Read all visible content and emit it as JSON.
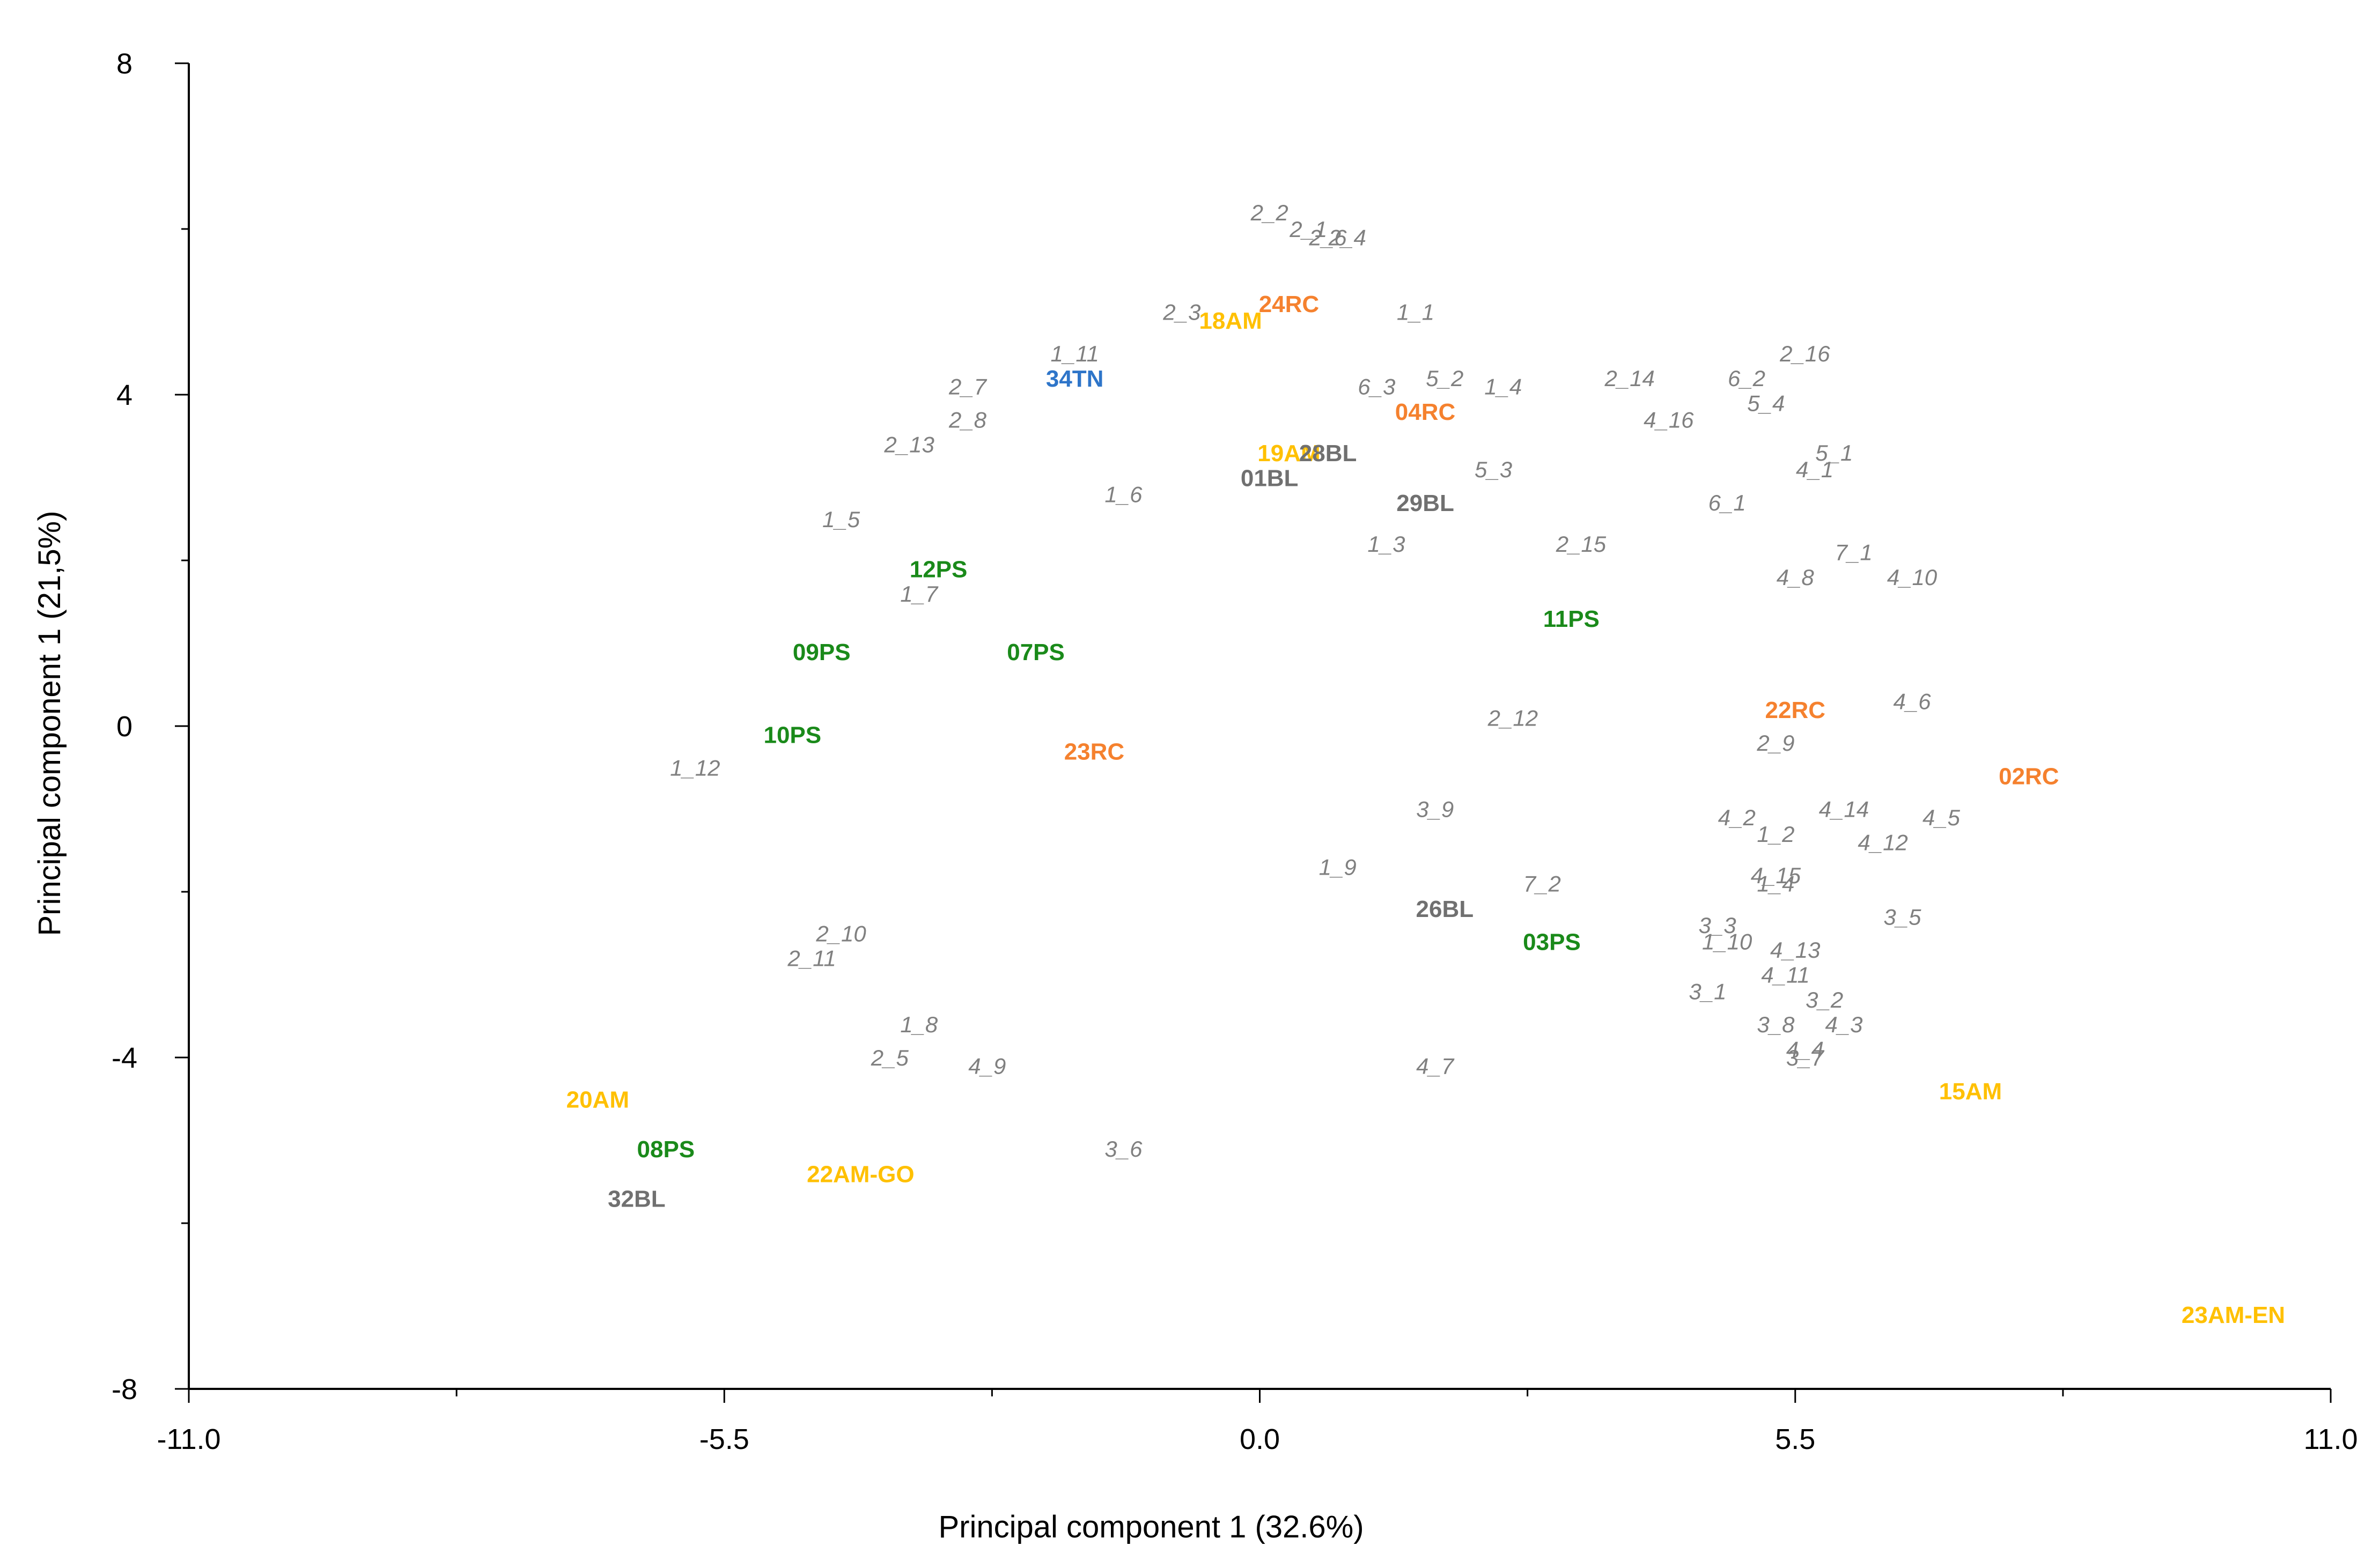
{
  "chart_data": {
    "type": "scatter",
    "title": "",
    "xlabel": "Principal component 1 (32.6%)",
    "ylabel": "Principal component 1 (21,5%)",
    "xlim": [
      -11.0,
      11.0
    ],
    "ylim": [
      -8,
      8
    ],
    "xticks": [
      -11.0,
      -5.5,
      0.0,
      5.5,
      11.0
    ],
    "xtick_labels": [
      "-11.0",
      "-5.5",
      "0.0",
      "5.5",
      "11.0"
    ],
    "yticks": [
      -8,
      -4,
      0,
      4,
      8
    ],
    "ytick_labels": [
      "-8",
      "-4",
      "0",
      "4",
      "8"
    ],
    "grid": false,
    "colors": {
      "variables": "#808080",
      "PS": "#1a8a1a",
      "RC": "#f5812e",
      "AM": "#ffc000",
      "BL": "#707070",
      "TN": "#2e75c9"
    },
    "variables": [
      {
        "label": "2_2",
        "x": 0.1,
        "y": 6.2
      },
      {
        "label": "2_1",
        "x": 0.5,
        "y": 6.0
      },
      {
        "label": "2_6",
        "x": 0.7,
        "y": 5.9
      },
      {
        "label": "2_4",
        "x": 0.9,
        "y": 5.9
      },
      {
        "label": "2_3",
        "x": -0.8,
        "y": 5.0
      },
      {
        "label": "1_1",
        "x": 1.6,
        "y": 5.0
      },
      {
        "label": "1_11",
        "x": -1.9,
        "y": 4.5
      },
      {
        "label": "2_7",
        "x": -3.0,
        "y": 4.1
      },
      {
        "label": "6_3",
        "x": 1.2,
        "y": 4.1
      },
      {
        "label": "5_2",
        "x": 1.9,
        "y": 4.2
      },
      {
        "label": "1_4",
        "x": 2.5,
        "y": 4.1
      },
      {
        "label": "2_14",
        "x": 3.8,
        "y": 4.2
      },
      {
        "label": "6_2",
        "x": 5.0,
        "y": 4.2
      },
      {
        "label": "2_16",
        "x": 5.6,
        "y": 4.5
      },
      {
        "label": "5_4",
        "x": 5.2,
        "y": 3.9
      },
      {
        "label": "4_16",
        "x": 4.2,
        "y": 3.7
      },
      {
        "label": "2_8",
        "x": -3.0,
        "y": 3.7
      },
      {
        "label": "2_13",
        "x": -3.6,
        "y": 3.4
      },
      {
        "label": "5_1",
        "x": 5.9,
        "y": 3.3
      },
      {
        "label": "4_1",
        "x": 5.7,
        "y": 3.1
      },
      {
        "label": "5_3",
        "x": 2.4,
        "y": 3.1
      },
      {
        "label": "1_6",
        "x": -1.4,
        "y": 2.8
      },
      {
        "label": "6_1",
        "x": 4.8,
        "y": 2.7
      },
      {
        "label": "1_5",
        "x": -4.3,
        "y": 2.5
      },
      {
        "label": "1_3",
        "x": 1.3,
        "y": 2.2
      },
      {
        "label": "2_15",
        "x": 3.3,
        "y": 2.2
      },
      {
        "label": "7_1",
        "x": 6.1,
        "y": 2.1
      },
      {
        "label": "4_8",
        "x": 5.5,
        "y": 1.8
      },
      {
        "label": "4_10",
        "x": 6.7,
        "y": 1.8
      },
      {
        "label": "1_7",
        "x": -3.5,
        "y": 1.6
      },
      {
        "label": "4_6",
        "x": 6.7,
        "y": 0.3
      },
      {
        "label": "2_12",
        "x": 2.6,
        "y": 0.1
      },
      {
        "label": "2_9",
        "x": 5.3,
        "y": -0.2
      },
      {
        "label": "1_12",
        "x": -5.8,
        "y": -0.5
      },
      {
        "label": "3_9",
        "x": 1.8,
        "y": -1.0
      },
      {
        "label": "4_2",
        "x": 4.9,
        "y": -1.1
      },
      {
        "label": "4_14",
        "x": 6.0,
        "y": -1.0
      },
      {
        "label": "4_5",
        "x": 7.0,
        "y": -1.1
      },
      {
        "label": "1_2",
        "x": 5.3,
        "y": -1.3
      },
      {
        "label": "4_12",
        "x": 6.4,
        "y": -1.4
      },
      {
        "label": "1_9",
        "x": 0.8,
        "y": -1.7
      },
      {
        "label": "4_15",
        "x": 5.3,
        "y": -1.8
      },
      {
        "label": "1_4",
        "x": 5.3,
        "y": -1.9
      },
      {
        "label": "7_2",
        "x": 2.9,
        "y": -1.9
      },
      {
        "label": "3_5",
        "x": 6.6,
        "y": -2.3
      },
      {
        "label": "3_3",
        "x": 4.7,
        "y": -2.4
      },
      {
        "label": "1_10",
        "x": 4.8,
        "y": -2.6
      },
      {
        "label": "2_10",
        "x": -4.3,
        "y": -2.5
      },
      {
        "label": "4_13",
        "x": 5.5,
        "y": -2.7
      },
      {
        "label": "2_11",
        "x": -4.6,
        "y": -2.8
      },
      {
        "label": "4_11",
        "x": 5.4,
        "y": -3.0
      },
      {
        "label": "3_1",
        "x": 4.6,
        "y": -3.2
      },
      {
        "label": "3_2",
        "x": 5.8,
        "y": -3.3
      },
      {
        "label": "3_8",
        "x": 5.3,
        "y": -3.6
      },
      {
        "label": "4_3",
        "x": 6.0,
        "y": -3.6
      },
      {
        "label": "1_8",
        "x": -3.5,
        "y": -3.6
      },
      {
        "label": "4_4",
        "x": 5.6,
        "y": -3.9
      },
      {
        "label": "3_7",
        "x": 5.6,
        "y": -4.0
      },
      {
        "label": "2_5",
        "x": -3.8,
        "y": -4.0
      },
      {
        "label": "4_9",
        "x": -2.8,
        "y": -4.1
      },
      {
        "label": "4_7",
        "x": 1.8,
        "y": -4.1
      },
      {
        "label": "3_6",
        "x": -1.4,
        "y": -5.1
      }
    ],
    "points": [
      {
        "label": "24RC",
        "group": "RC",
        "x": 0.3,
        "y": 5.1
      },
      {
        "label": "18AM",
        "group": "AM",
        "x": -0.3,
        "y": 4.9
      },
      {
        "label": "34TN",
        "group": "TN",
        "x": -1.9,
        "y": 4.2
      },
      {
        "label": "04RC",
        "group": "RC",
        "x": 1.7,
        "y": 3.8
      },
      {
        "label": "19AM",
        "group": "AM",
        "x": 0.3,
        "y": 3.3
      },
      {
        "label": "28BL",
        "group": "BL",
        "x": 0.7,
        "y": 3.3
      },
      {
        "label": "01BL",
        "group": "BL",
        "x": 0.1,
        "y": 3.0
      },
      {
        "label": "29BL",
        "group": "BL",
        "x": 1.7,
        "y": 2.7
      },
      {
        "label": "12PS",
        "group": "PS",
        "x": -3.3,
        "y": 1.9
      },
      {
        "label": "11PS",
        "group": "PS",
        "x": 3.2,
        "y": 1.3
      },
      {
        "label": "09PS",
        "group": "PS",
        "x": -4.5,
        "y": 0.9
      },
      {
        "label": "07PS",
        "group": "PS",
        "x": -2.3,
        "y": 0.9
      },
      {
        "label": "22RC",
        "group": "RC",
        "x": 5.5,
        "y": 0.2
      },
      {
        "label": "10PS",
        "group": "PS",
        "x": -4.8,
        "y": -0.1
      },
      {
        "label": "23RC",
        "group": "RC",
        "x": -1.7,
        "y": -0.3
      },
      {
        "label": "02RC",
        "group": "RC",
        "x": 7.9,
        "y": -0.6
      },
      {
        "label": "26BL",
        "group": "BL",
        "x": 1.9,
        "y": -2.2
      },
      {
        "label": "03PS",
        "group": "PS",
        "x": 3.0,
        "y": -2.6
      },
      {
        "label": "15AM",
        "group": "AM",
        "x": 7.3,
        "y": -4.4
      },
      {
        "label": "20AM",
        "group": "AM",
        "x": -6.8,
        "y": -4.5
      },
      {
        "label": "08PS",
        "group": "PS",
        "x": -6.1,
        "y": -5.1
      },
      {
        "label": "22AM-GO",
        "group": "AM",
        "x": -4.1,
        "y": -5.4
      },
      {
        "label": "32BL",
        "group": "BL",
        "x": -6.4,
        "y": -5.7
      },
      {
        "label": "23AM-EN",
        "group": "AM",
        "x": 10.0,
        "y": -7.1
      }
    ]
  }
}
